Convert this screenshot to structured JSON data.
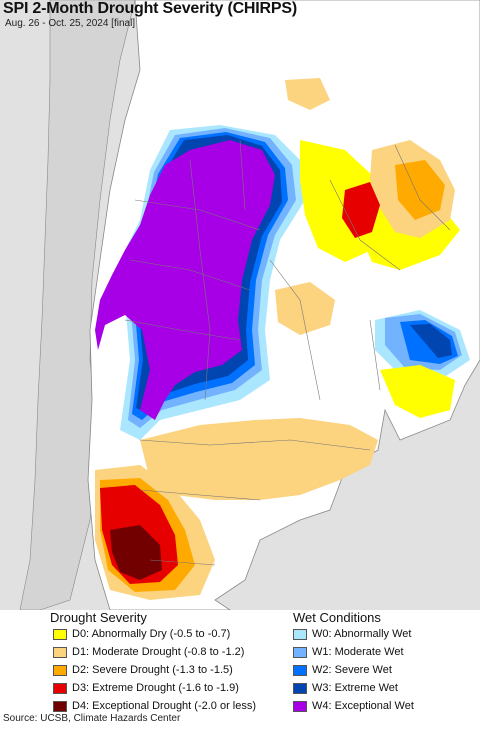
{
  "header": {
    "title": "SPI 2-Month Drought Severity (CHIRPS)",
    "subtitle": "Aug. 26 - Oct. 25, 2024 [final]"
  },
  "legend": {
    "drought_title": "Drought Severity",
    "wet_title": "Wet Conditions",
    "drought_items": [
      {
        "label": "D0: Abnormally Dry (-0.5 to -0.7)",
        "color": "#ffff00"
      },
      {
        "label": "D1: Moderate Drought (-0.8 to -1.2)",
        "color": "#fcd37f"
      },
      {
        "label": "D2: Severe Drought (-1.3 to -1.5)",
        "color": "#ffaa00"
      },
      {
        "label": "D3: Extreme Drought (-1.6 to -1.9)",
        "color": "#e60000"
      },
      {
        "label": "D4: Exceptional Drought (-2.0 or less)",
        "color": "#730000"
      }
    ],
    "wet_items": [
      {
        "label": "W0: Abnormally Wet",
        "color": "#aae7ff"
      },
      {
        "label": "W1: Moderate Wet",
        "color": "#73b2ff"
      },
      {
        "label": "W2: Severe Wet",
        "color": "#0070ff"
      },
      {
        "label": "W3: Extreme Wet",
        "color": "#0045b0"
      },
      {
        "label": "W4: Exceptional Wet",
        "color": "#a800e6"
      }
    ]
  },
  "footer": {
    "source": "Source: UCSB, Climate Hazards Center"
  },
  "map_colors": {
    "background": "#e1e1e1",
    "land": "#ffffff",
    "border": "#888888"
  }
}
